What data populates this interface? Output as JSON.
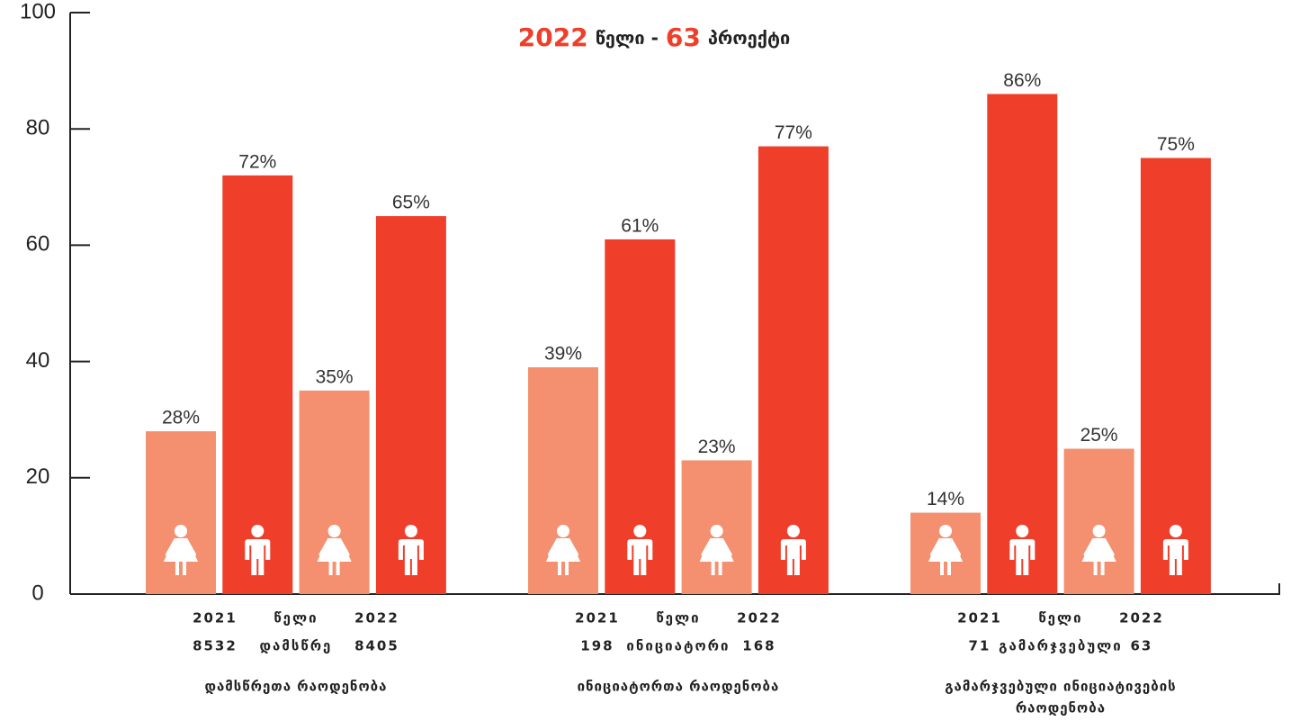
{
  "chart_data": {
    "type": "bar",
    "title_parts": [
      "2022",
      "წელი -",
      "63",
      "პროექტი"
    ],
    "title_colors": [
      "#ef3e2a",
      "#222222",
      "#ef3e2a",
      "#222222"
    ],
    "categories": [
      [
        "დამსწრეთა რაოდენობა"
      ],
      [
        "ინიციატორთა რაოდენობა"
      ],
      [
        "გამარჯვებული ინიციატივების",
        "რაოდენობა"
      ]
    ],
    "year_rows": [
      [
        "2021",
        "წელი",
        "2022"
      ],
      [
        "2021",
        "წელი",
        "2022"
      ],
      [
        "2021",
        "წელი",
        "2022"
      ]
    ],
    "count_rows": [
      [
        "8532",
        "დამსწრე",
        "8405"
      ],
      [
        "198",
        "ინიციატორი",
        "168"
      ],
      [
        "71",
        "გამარჯვებული",
        "63"
      ]
    ],
    "series": [
      {
        "color": "#f4906f",
        "values": [
          28,
          39,
          14
        ],
        "value_labels": [
          "28%",
          "39%",
          "14%"
        ]
      },
      {
        "color": "#ef3e2a",
        "values": [
          72,
          61,
          86
        ],
        "value_labels": [
          "72%",
          "61%",
          "86%"
        ]
      },
      {
        "color": "#f4906f",
        "values": [
          35,
          23,
          25
        ],
        "value_labels": [
          "35%",
          "23%",
          "25%"
        ]
      },
      {
        "color": "#ef3e2a",
        "values": [
          65,
          77,
          75
        ],
        "value_labels": [
          "65%",
          "77%",
          "75%"
        ]
      }
    ],
    "ylim": [
      0,
      100
    ],
    "yticks": [
      0,
      20,
      40,
      60,
      80,
      100
    ]
  }
}
